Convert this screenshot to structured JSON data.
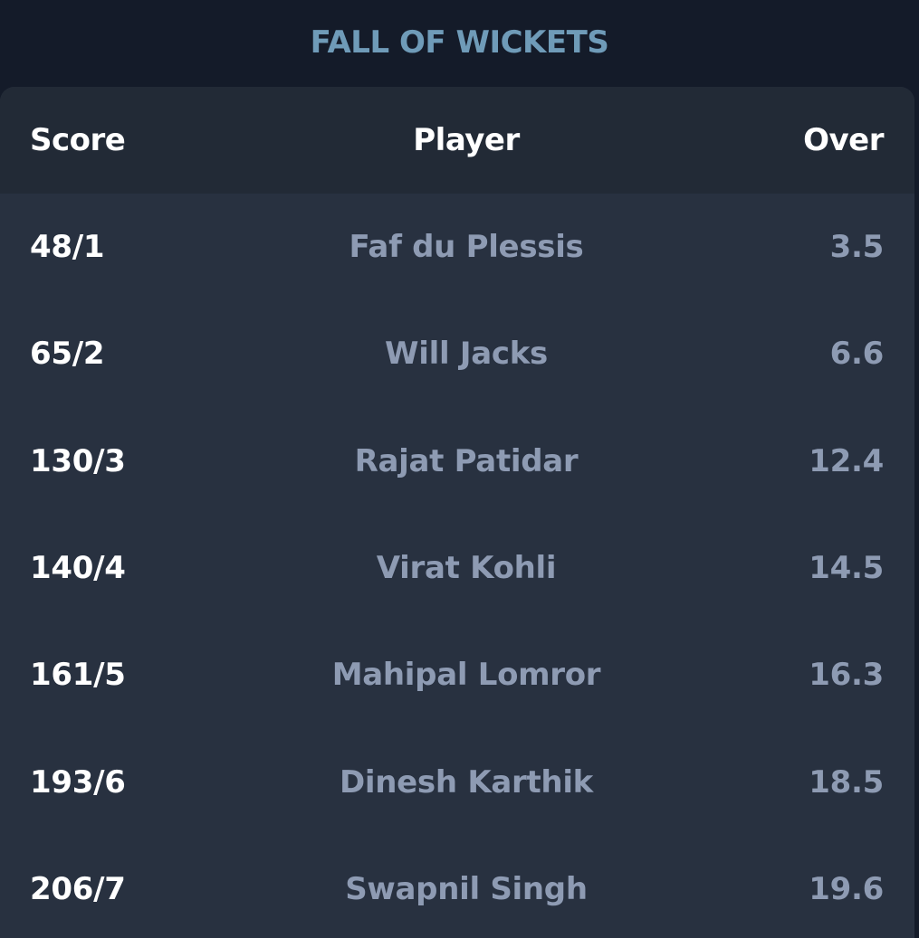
{
  "section_title": "FALL OF WICKETS",
  "table": {
    "headers": {
      "score": "Score",
      "player": "Player",
      "over": "Over"
    },
    "rows": [
      {
        "score": "48/1",
        "player": "Faf du Plessis",
        "over": "3.5"
      },
      {
        "score": "65/2",
        "player": "Will Jacks",
        "over": "6.6"
      },
      {
        "score": "130/3",
        "player": "Rajat Patidar",
        "over": "12.4"
      },
      {
        "score": "140/4",
        "player": "Virat Kohli",
        "over": "14.5"
      },
      {
        "score": "161/5",
        "player": "Mahipal Lomror",
        "over": "16.3"
      },
      {
        "score": "193/6",
        "player": "Dinesh Karthik",
        "over": "18.5"
      },
      {
        "score": "206/7",
        "player": "Swapnil Singh",
        "over": "19.6"
      }
    ]
  },
  "colors": {
    "background": "#141b29",
    "card": "#283140",
    "header": "#222a36",
    "title": "#6f9bb8",
    "primary_text": "#ffffff",
    "secondary_text": "#8e9bb3"
  }
}
